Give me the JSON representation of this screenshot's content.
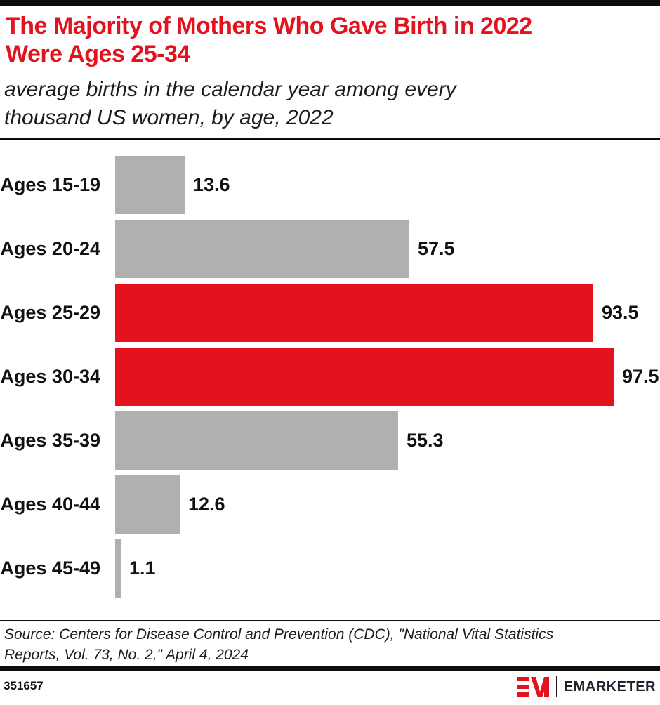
{
  "header": {
    "title_lines": [
      "The Majority of Mothers Who Gave Birth in 2022",
      "Were Ages 25-34"
    ],
    "subtitle_lines": [
      "average births in the calendar year among every",
      "thousand US women, by age, 2022"
    ]
  },
  "chart_data": {
    "type": "bar",
    "orientation": "horizontal",
    "title": "The Majority of Mothers Who Gave Birth in 2022 Were Ages 25-34",
    "subtitle": "average births in the calendar year among every thousand US women, by age, 2022",
    "categories": [
      "Ages 15-19",
      "Ages 20-24",
      "Ages 25-29",
      "Ages 30-34",
      "Ages 35-39",
      "Ages 40-44",
      "Ages 45-49"
    ],
    "values": [
      13.6,
      57.5,
      93.5,
      97.5,
      55.3,
      12.6,
      1.1
    ],
    "value_labels": [
      "13.6",
      "57.5",
      "93.5",
      "97.5",
      "55.3",
      "12.6",
      "1.1"
    ],
    "bar_colors": [
      "#b0b0b0",
      "#b0b0b0",
      "#e4121d",
      "#e4121d",
      "#b0b0b0",
      "#b0b0b0",
      "#b0b0b0"
    ],
    "highlight_color": "#e4121d",
    "default_color": "#b0b0b0",
    "xlabel": "",
    "ylabel": "",
    "xlim": [
      0,
      97.5
    ],
    "grid": false,
    "legend": false,
    "value_labels_shown": true,
    "axis_shown": false
  },
  "source": {
    "lines": [
      "Source: Centers for Disease Control and Prevention (CDC), \"National Vital Statistics",
      "Reports, Vol. 73, No. 2,\" April 4, 2024"
    ]
  },
  "footer": {
    "chart_id": "351657",
    "brand_text": "EMARKETER",
    "brand_mark": "EM-monogram",
    "brand_color": "#e4121d"
  }
}
